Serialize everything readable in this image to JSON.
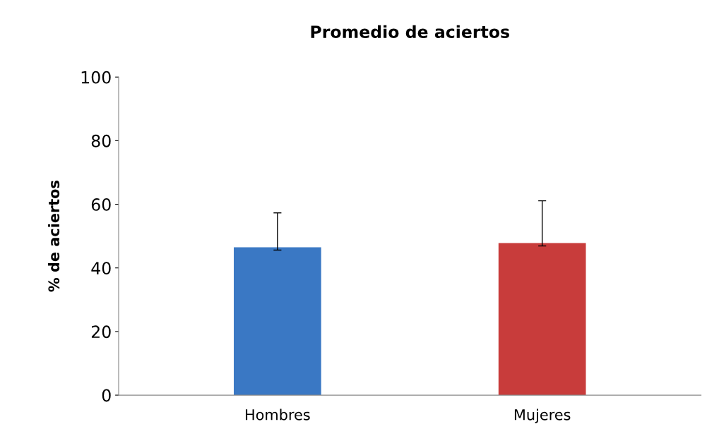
{
  "chart_data": {
    "type": "bar",
    "title": "Promedio de aciertos",
    "ylabel": "% de aciertos",
    "categories": [
      "Hombres",
      "Mujeres"
    ],
    "values": [
      46.5,
      47.8
    ],
    "colors": [
      "#3a78c4",
      "#c83c3b"
    ],
    "errors": [
      [
        45.6,
        57.3
      ],
      [
        46.9,
        61.1
      ]
    ],
    "ylim": [
      0,
      100
    ],
    "yticks": [
      0,
      20,
      40,
      60,
      80,
      100
    ],
    "grid": false,
    "legend": false
  }
}
